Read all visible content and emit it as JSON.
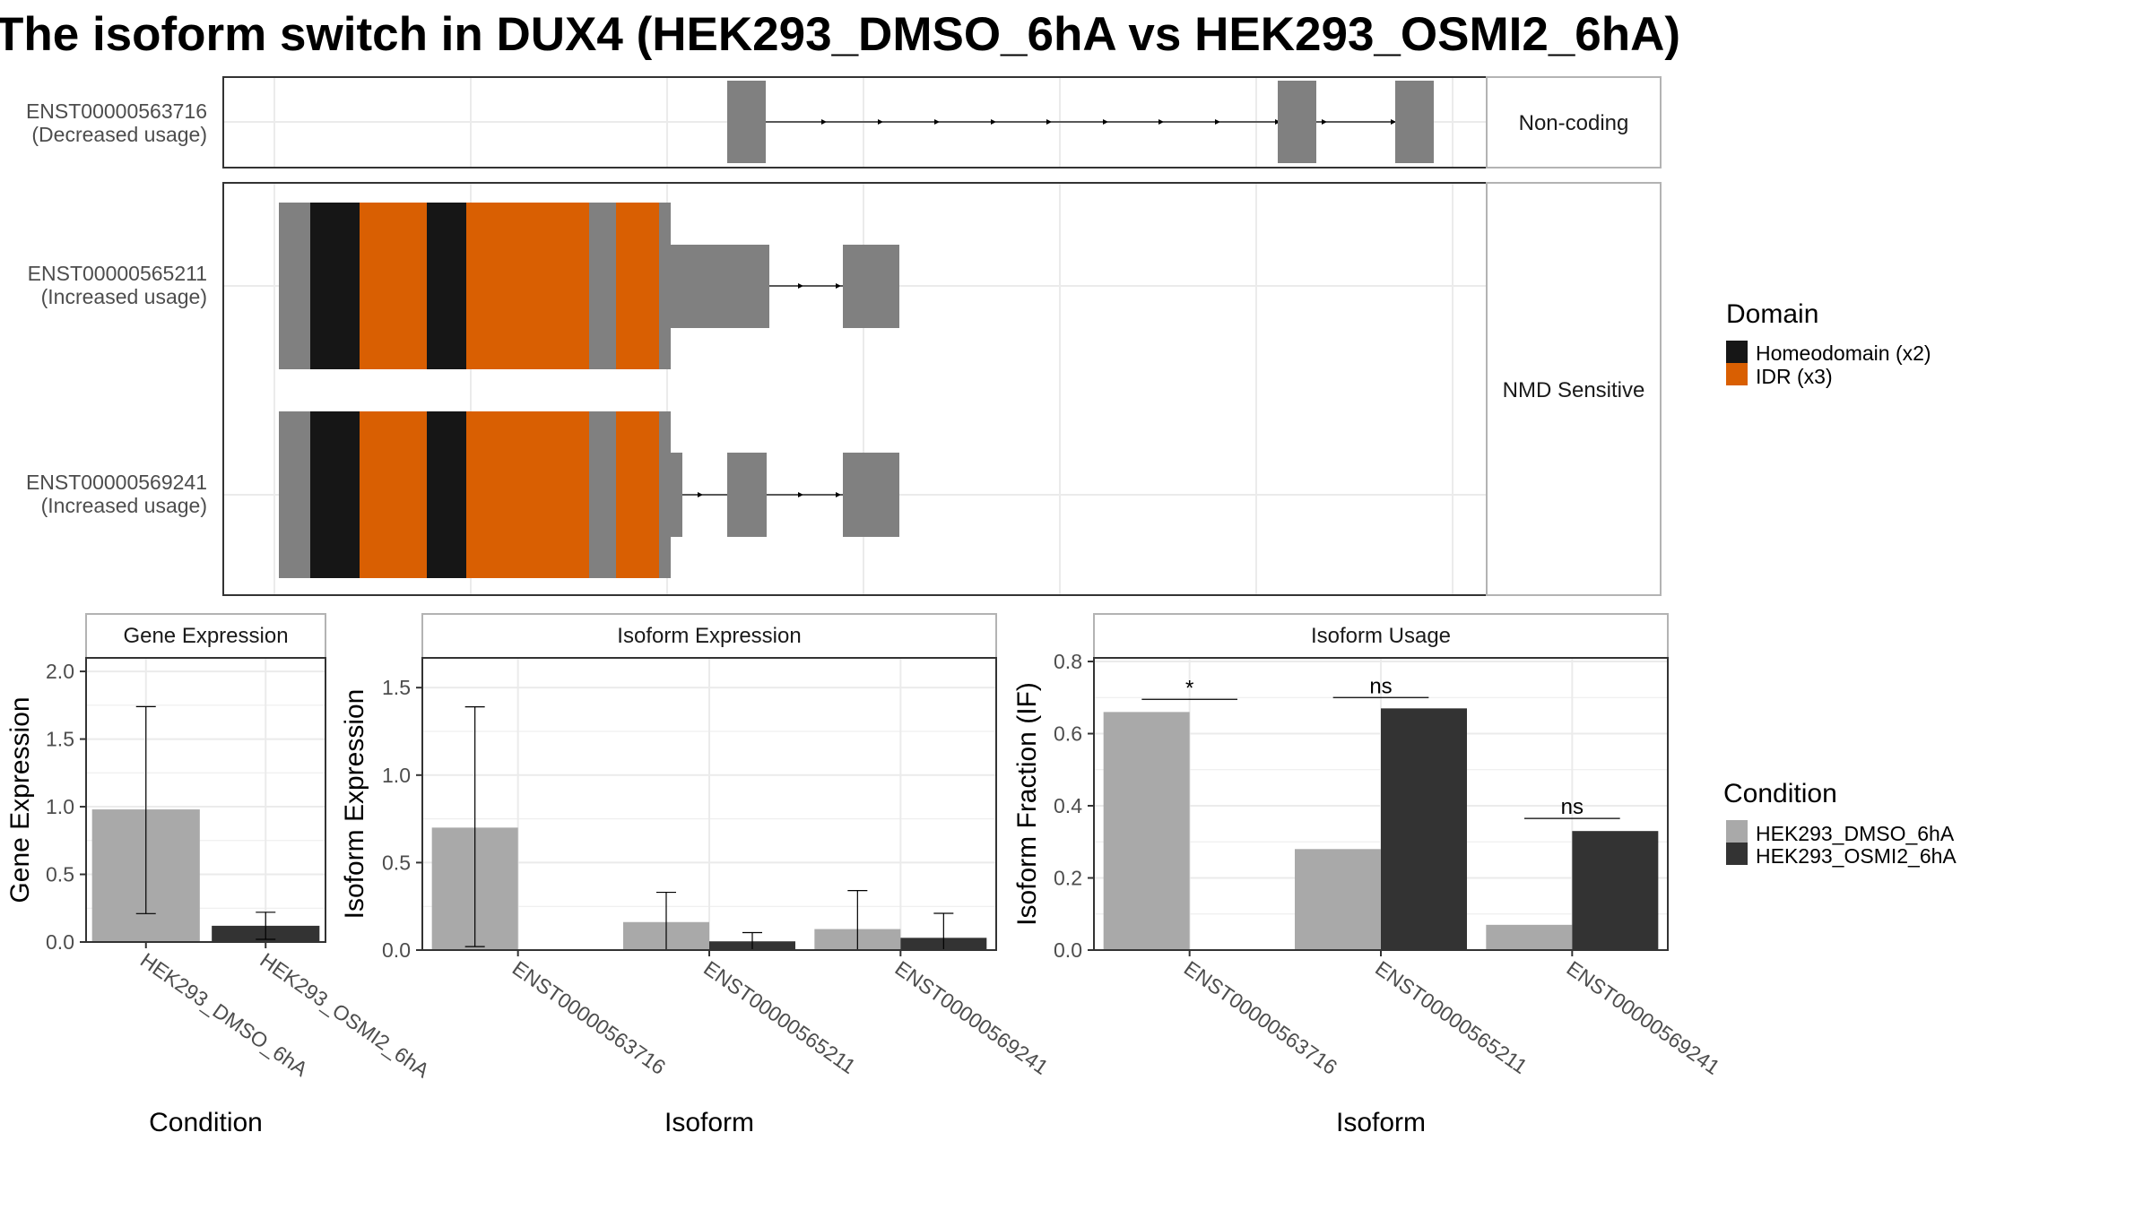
{
  "title": "The isoform switch in DUX4 (HEK293_DMSO_6hA vs HEK293_OSMI2_6hA)",
  "colors": {
    "homeodomain": "#161616",
    "idr": "#D95F02",
    "exon": "#808080",
    "dmso": "#A9A9A9",
    "osmi2": "#333333",
    "grid": "#EBEBEB",
    "strip_border": "#B3B3B3",
    "panel_border": "#333333"
  },
  "structure": {
    "rows": [
      {
        "id": "ENST00000563716",
        "sublabel": "(Decreased usage)"
      },
      {
        "id": "ENST00000565211",
        "sublabel": "(Increased usage)"
      },
      {
        "id": "ENST00000569241",
        "sublabel": "(Increased usage)"
      }
    ],
    "facets": [
      "Non-coding",
      "NMD Sensitive"
    ]
  },
  "legends": {
    "domain": {
      "title": "Domain",
      "items": [
        "Homeodomain (x2)",
        "IDR (x3)"
      ]
    },
    "condition": {
      "title": "Condition",
      "items": [
        "HEK293_DMSO_6hA",
        "HEK293_OSMI2_6hA"
      ]
    }
  },
  "chart_data": [
    {
      "type": "bar",
      "title": "Gene Expression",
      "xlabel": "Condition",
      "ylabel": "Gene Expression",
      "categories": [
        "HEK293_DMSO_6hA",
        "HEK293_OSMI2_6hA"
      ],
      "values": [
        0.98,
        0.12
      ],
      "error_low": [
        0.21,
        0.02
      ],
      "error_high": [
        1.74,
        0.22
      ],
      "ylim": [
        0,
        2.1
      ],
      "yticks": [
        0.0,
        0.5,
        1.0,
        1.5,
        2.0
      ],
      "ytick_labels": [
        "0.0",
        "0.5",
        "1.0",
        "1.5",
        "2.0"
      ]
    },
    {
      "type": "bar",
      "title": "Isoform Expression",
      "xlabel": "Isoform",
      "ylabel": "Isoform Expression",
      "categories": [
        "ENST00000563716",
        "ENST00000565211",
        "ENST00000569241"
      ],
      "series": [
        {
          "name": "HEK293_DMSO_6hA",
          "values": [
            0.7,
            0.16,
            0.12
          ],
          "error_low": [
            0.02,
            0.0,
            0.0
          ],
          "error_high": [
            1.39,
            0.33,
            0.34
          ]
        },
        {
          "name": "HEK293_OSMI2_6hA",
          "values": [
            0.0,
            0.05,
            0.07
          ],
          "error_low": [
            0.0,
            0.0,
            0.0
          ],
          "error_high": [
            0.0,
            0.1,
            0.21
          ]
        }
      ],
      "ylim": [
        0,
        1.67
      ],
      "yticks": [
        0.0,
        0.5,
        1.0,
        1.5
      ],
      "ytick_labels": [
        "0.0",
        "0.5",
        "1.0",
        "1.5"
      ]
    },
    {
      "type": "bar",
      "title": "Isoform Usage",
      "xlabel": "Isoform",
      "ylabel": "Isoform Fraction (IF)",
      "categories": [
        "ENST00000563716",
        "ENST00000565211",
        "ENST00000569241"
      ],
      "series": [
        {
          "name": "HEK293_DMSO_6hA",
          "values": [
            0.66,
            0.28,
            0.07
          ]
        },
        {
          "name": "HEK293_OSMI2_6hA",
          "values": [
            0.0,
            0.67,
            0.33
          ]
        }
      ],
      "significance": [
        "*",
        "ns",
        "ns"
      ],
      "significance_y": [
        0.695,
        0.7,
        0.365
      ],
      "ylim": [
        0,
        0.81
      ],
      "yticks": [
        0.0,
        0.2,
        0.4,
        0.6,
        0.8
      ],
      "ytick_labels": [
        "0.0",
        "0.2",
        "0.4",
        "0.6",
        "0.8"
      ]
    }
  ]
}
